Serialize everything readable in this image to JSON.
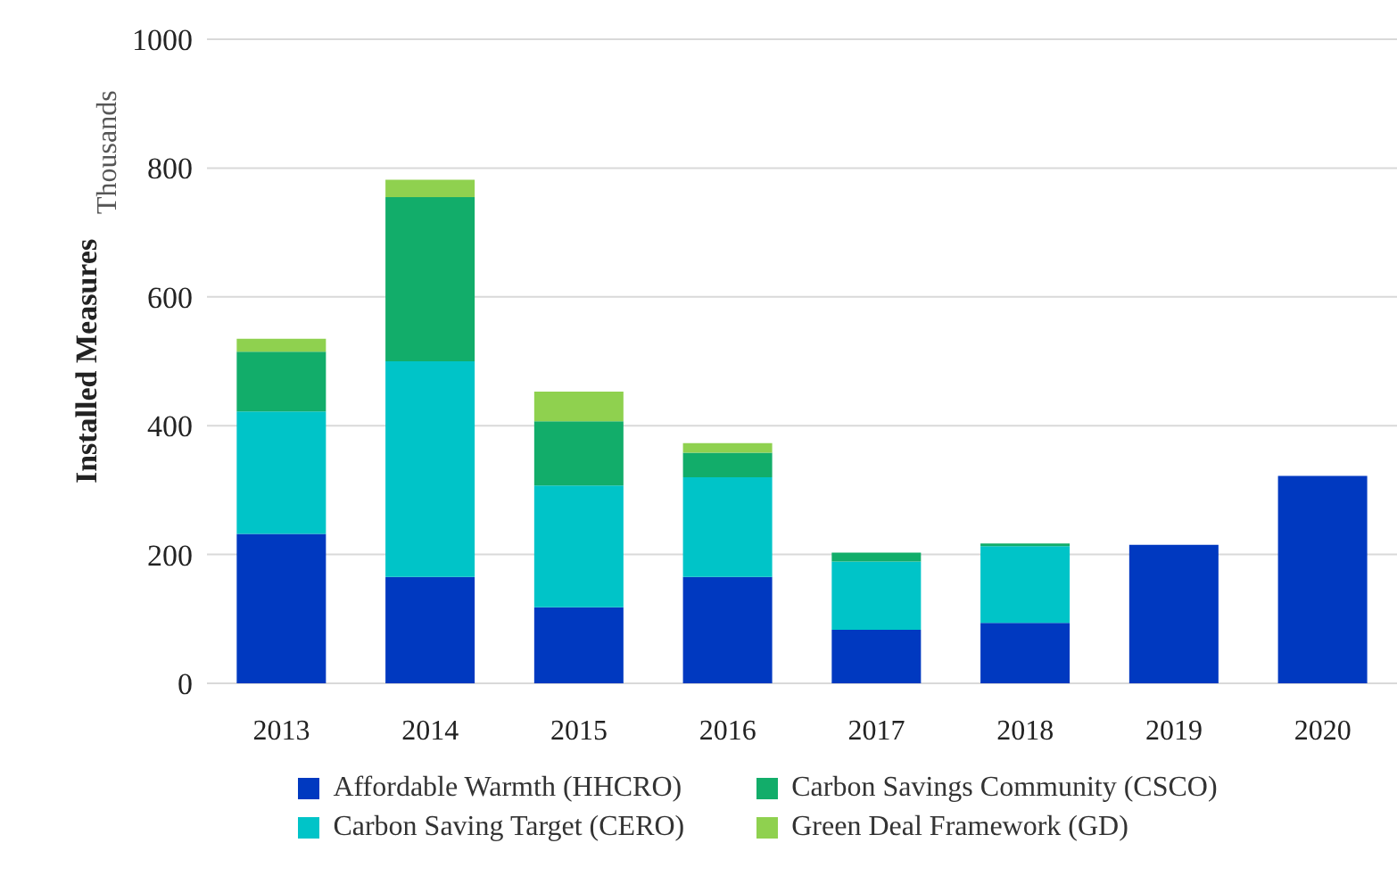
{
  "chart_data": {
    "type": "bar",
    "stacked": true,
    "ylabel": "Installed Measures",
    "annotations": [
      "Thousands"
    ],
    "categories": [
      "2013",
      "2014",
      "2015",
      "2016",
      "2017",
      "2018",
      "2019",
      "2020"
    ],
    "series": [
      {
        "name": "Affordable Warmth (HHCRO)",
        "color": "#0039c0",
        "values": [
          232,
          165,
          118,
          165,
          83,
          94,
          215,
          322
        ]
      },
      {
        "name": "Carbon Saving Target (CERO)",
        "color": "#00c4c8",
        "values": [
          190,
          335,
          189,
          155,
          106,
          119,
          null,
          null
        ]
      },
      {
        "name": "Carbon Savings Community (CSCO)",
        "color": "#12ad6a",
        "values": [
          93,
          255,
          100,
          38,
          14,
          4,
          null,
          null
        ]
      },
      {
        "name": "Green Deal Framework (GD)",
        "color": "#8fd14f",
        "values": [
          20,
          27,
          46,
          15,
          null,
          null,
          null,
          null
        ]
      }
    ],
    "ylim": [
      0,
      1000
    ],
    "yticks": [
      0,
      200,
      400,
      600,
      800,
      1000
    ],
    "grid": "y",
    "legend": "bottom"
  }
}
